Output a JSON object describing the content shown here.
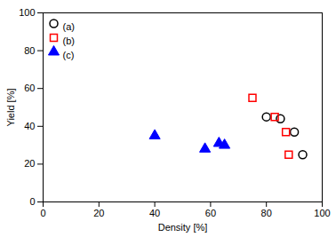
{
  "chart_data": {
    "type": "scatter",
    "xlabel": "Density [%]",
    "ylabel": "Yield [%]",
    "series": [
      {
        "name": "(a)",
        "color": "black",
        "marker": "open circle",
        "x": [
          80,
          85,
          90,
          93
        ],
        "values": [
          45,
          44,
          37,
          25
        ]
      },
      {
        "name": "(b)",
        "color": "red",
        "marker": "open square",
        "x": [
          75,
          83,
          87,
          88
        ],
        "values": [
          55,
          45,
          37,
          25
        ]
      },
      {
        "name": "(c)",
        "color": "blue",
        "marker": "triangle",
        "x": [
          40,
          58,
          63,
          65
        ],
        "values": [
          35,
          28,
          31,
          30
        ]
      }
    ],
    "xlim": [
      0,
      100
    ],
    "ylim": [
      0,
      100
    ],
    "xticks": [
      0,
      20,
      40,
      60,
      80,
      100
    ],
    "yticks": [
      0,
      20,
      40,
      60,
      80,
      100
    ],
    "legend": "upper left"
  }
}
